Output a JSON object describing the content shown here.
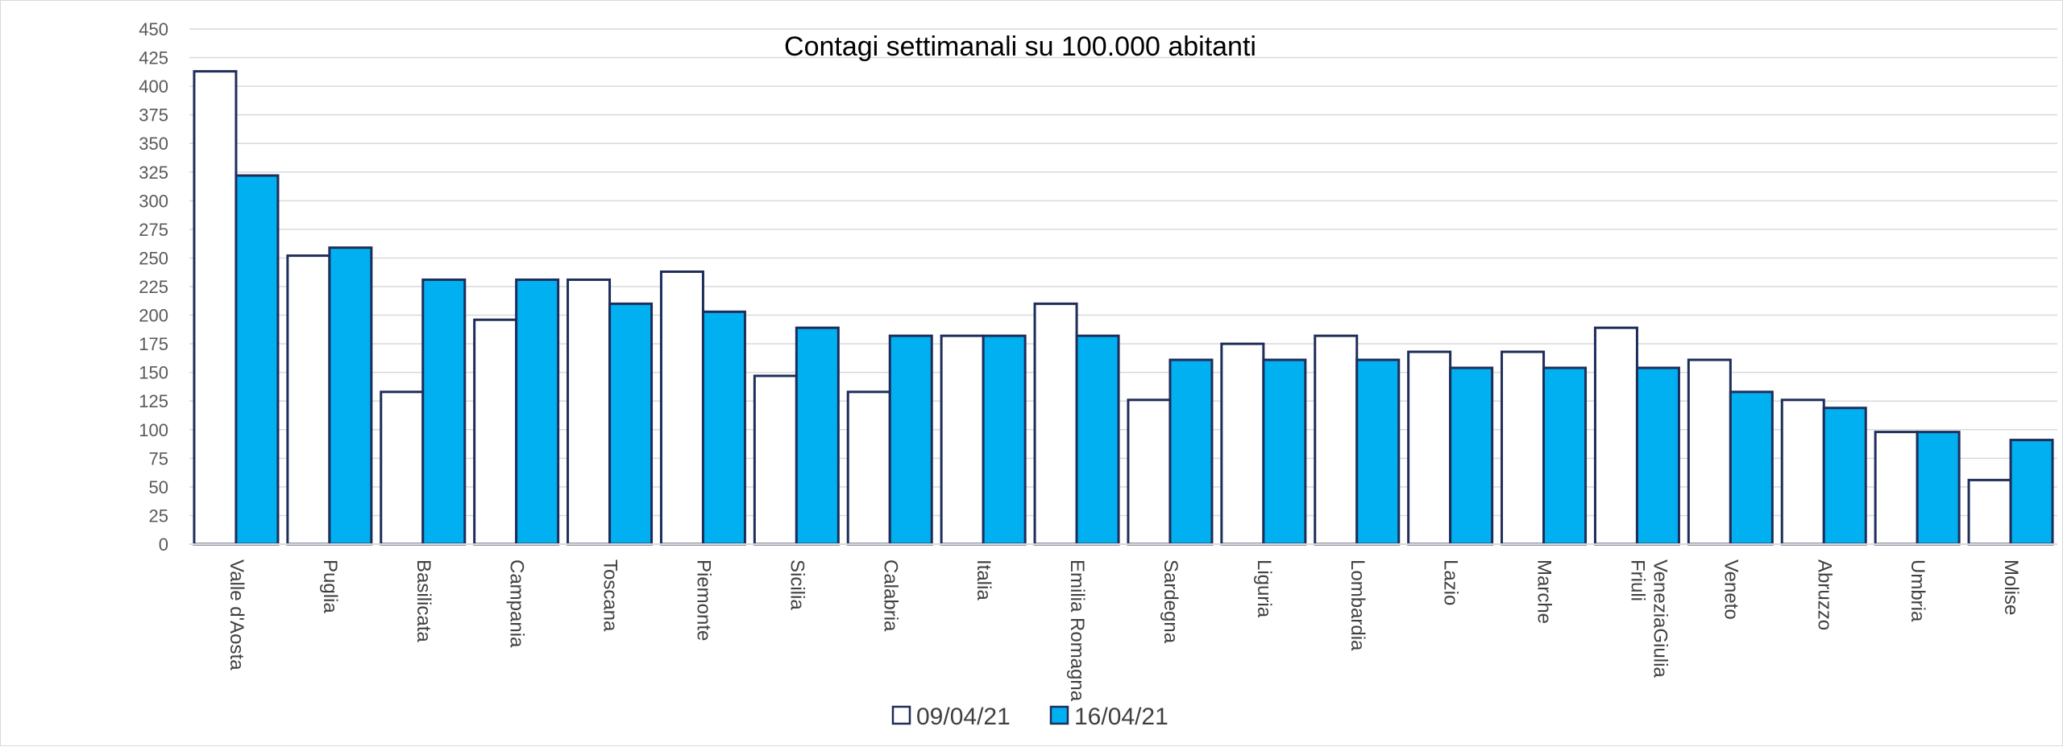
{
  "chart_data": {
    "type": "bar",
    "title": "Contagi settimanali su 100.000 abitanti",
    "xlabel": "",
    "ylabel": "",
    "ylim": [
      0,
      450
    ],
    "ytick_step": 25,
    "grid": true,
    "legend_position": "bottom",
    "categories": [
      "Valle d'Aosta",
      "Puglia",
      "Basilicata",
      "Campania",
      "Toscana",
      "Piemonte",
      "Sicilia",
      "Calabria",
      "Italia",
      "Emilia Romagna",
      "Sardegna",
      "Liguria",
      "Lombardia",
      "Lazio",
      "Marche",
      "Friuli VeneziaGiulia",
      "Veneto",
      "Abruzzo",
      "Umbria",
      "Molise"
    ],
    "category_lines": [
      [
        "Valle d'Aosta"
      ],
      [
        "Puglia"
      ],
      [
        "Basilicata"
      ],
      [
        "Campania"
      ],
      [
        "Toscana"
      ],
      [
        "Piemonte"
      ],
      [
        "Sicilia"
      ],
      [
        "Calabria"
      ],
      [
        "Italia"
      ],
      [
        "Emilia Romagna"
      ],
      [
        "Sardegna"
      ],
      [
        "Liguria"
      ],
      [
        "Lombardia"
      ],
      [
        "Lazio"
      ],
      [
        "Marche"
      ],
      [
        "Friuli",
        "VeneziaGiulia"
      ],
      [
        "Veneto"
      ],
      [
        "Abruzzo"
      ],
      [
        "Umbria"
      ],
      [
        "Molise"
      ]
    ],
    "series": [
      {
        "name": "09/04/21",
        "color": "#ffffff",
        "values": [
          413,
          252,
          133,
          196,
          231,
          238,
          147,
          133,
          182,
          210,
          126,
          175,
          182,
          168,
          168,
          189,
          161,
          126,
          98,
          56
        ]
      },
      {
        "name": "16/04/21",
        "color": "#00b0f0",
        "values": [
          322,
          259,
          231,
          231,
          210,
          203,
          189,
          182,
          182,
          182,
          161,
          161,
          161,
          154,
          154,
          154,
          133,
          119,
          98,
          91
        ]
      }
    ],
    "bar_outline_color": "#1f2d5a",
    "grid_color": "#d9d9d9"
  }
}
